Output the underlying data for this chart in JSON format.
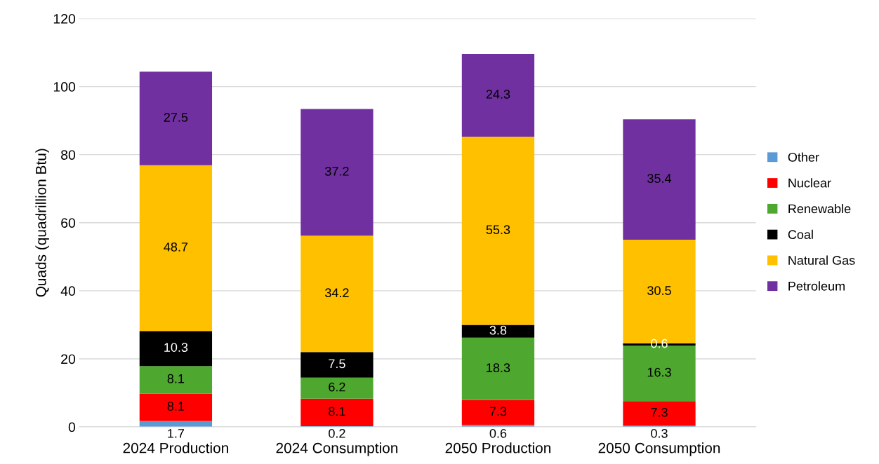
{
  "chart_data": {
    "type": "bar",
    "stacked": true,
    "ylabel": "Quads (quadrillion Btu)",
    "categories": [
      "2024 Production",
      "2024 Consumption",
      "2050 Production",
      "2050 Consumption"
    ],
    "series": [
      {
        "name": "Other",
        "color": "#5b9bd5",
        "values": [
          1.7,
          0.2,
          0.6,
          0.3
        ]
      },
      {
        "name": "Nuclear",
        "color": "#ff0000",
        "values": [
          8.1,
          8.1,
          7.3,
          7.3
        ]
      },
      {
        "name": "Renewable",
        "color": "#4ea72e",
        "values": [
          8.1,
          6.2,
          18.3,
          16.3
        ]
      },
      {
        "name": "Coal",
        "color": "#000000",
        "values": [
          10.3,
          7.5,
          3.8,
          0.6
        ]
      },
      {
        "name": "Natural Gas",
        "color": "#ffc000",
        "values": [
          48.7,
          34.2,
          55.3,
          30.5
        ]
      },
      {
        "name": "Petroleum",
        "color": "#7030a0",
        "values": [
          27.5,
          37.2,
          24.3,
          35.4
        ]
      }
    ],
    "ylim": [
      0,
      120
    ],
    "yticks": [
      0,
      20,
      40,
      60,
      80,
      100,
      120
    ],
    "grid": "y",
    "legend": "right",
    "data_labels": true
  }
}
